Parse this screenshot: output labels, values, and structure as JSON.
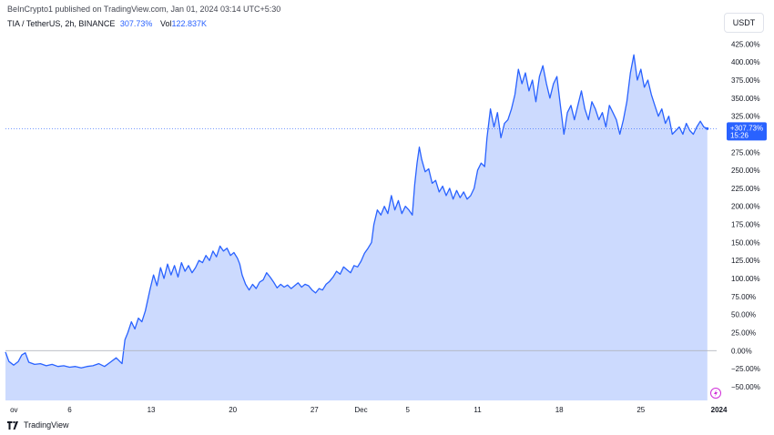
{
  "header": {
    "publisher": "BeInCrypto1 published on TradingView.com, Jan 01, 2024 03:14 UTC+5:30",
    "symbol": "TIA / TetherUS, 2h, BINANCE",
    "change": "307.73%",
    "volume_label": "Vol",
    "volume_value": "122.837K"
  },
  "currency": "USDT",
  "footer": {
    "brand": "TradingView"
  },
  "price_tag": {
    "value": "+307.73%",
    "countdown": "15:26"
  },
  "colors": {
    "line": "#2962ff",
    "fill": "#ccdafe",
    "zero_line": "#b2b5be",
    "tag": "#2962ff"
  },
  "icons": {
    "logo": "tradingview-logo-icon",
    "lightning": "lightning-icon"
  },
  "chart_data": {
    "type": "area",
    "ylabel_unit": "%",
    "ylim": [
      -69,
      428
    ],
    "xlim": [
      0,
      61
    ],
    "y_ticks": [
      "425.00%",
      "400.00%",
      "375.00%",
      "350.00%",
      "325.00%",
      "300.00%",
      "275.00%",
      "250.00%",
      "225.00%",
      "200.00%",
      "175.00%",
      "150.00%",
      "125.00%",
      "100.00%",
      "75.00%",
      "50.00%",
      "25.00%",
      "0.00%",
      "−25.00%",
      "−50.00%"
    ],
    "y_tick_values": [
      425,
      400,
      375,
      350,
      325,
      300,
      275,
      250,
      225,
      200,
      175,
      150,
      125,
      100,
      75,
      50,
      25,
      0,
      -25,
      -50
    ],
    "x_ticks": [
      {
        "label": "ov",
        "day": 0.4,
        "bold": false
      },
      {
        "label": "6",
        "day": 5.5,
        "bold": false
      },
      {
        "label": "13",
        "day": 12.5,
        "bold": false
      },
      {
        "label": "20",
        "day": 19.5,
        "bold": false
      },
      {
        "label": "27",
        "day": 26.5,
        "bold": false
      },
      {
        "label": "Dec",
        "day": 30.5,
        "bold": false
      },
      {
        "label": "5",
        "day": 34.5,
        "bold": false
      },
      {
        "label": "11",
        "day": 40.5,
        "bold": false
      },
      {
        "label": "18",
        "day": 47.5,
        "bold": false
      },
      {
        "label": "25",
        "day": 54.5,
        "bold": false
      },
      {
        "label": "2024",
        "day": 61.2,
        "bold": true
      }
    ],
    "last_value": 307.73,
    "series": [
      {
        "values": [
          [
            0,
            -2
          ],
          [
            0.3,
            -15
          ],
          [
            0.7,
            -20
          ],
          [
            1.1,
            -15
          ],
          [
            1.4,
            -6
          ],
          [
            1.7,
            -3
          ],
          [
            2.0,
            -16
          ],
          [
            2.5,
            -19
          ],
          [
            3.0,
            -18
          ],
          [
            3.5,
            -21
          ],
          [
            4.0,
            -19
          ],
          [
            4.5,
            -22
          ],
          [
            5.0,
            -21
          ],
          [
            5.5,
            -23
          ],
          [
            6.0,
            -22
          ],
          [
            6.5,
            -24
          ],
          [
            7.0,
            -22
          ],
          [
            7.5,
            -21
          ],
          [
            8.0,
            -18
          ],
          [
            8.5,
            -22
          ],
          [
            9.0,
            -16
          ],
          [
            9.5,
            -10
          ],
          [
            10.0,
            -18
          ],
          [
            10.25,
            15
          ],
          [
            10.5,
            25
          ],
          [
            10.8,
            40
          ],
          [
            11.1,
            30
          ],
          [
            11.4,
            45
          ],
          [
            11.7,
            40
          ],
          [
            12.0,
            55
          ],
          [
            12.2,
            70
          ],
          [
            12.4,
            85
          ],
          [
            12.7,
            105
          ],
          [
            13.0,
            90
          ],
          [
            13.3,
            115
          ],
          [
            13.6,
            100
          ],
          [
            13.9,
            120
          ],
          [
            14.2,
            105
          ],
          [
            14.5,
            118
          ],
          [
            14.8,
            102
          ],
          [
            15.1,
            122
          ],
          [
            15.4,
            110
          ],
          [
            15.7,
            118
          ],
          [
            16.0,
            108
          ],
          [
            16.3,
            115
          ],
          [
            16.6,
            125
          ],
          [
            16.9,
            122
          ],
          [
            17.2,
            132
          ],
          [
            17.5,
            125
          ],
          [
            17.8,
            138
          ],
          [
            18.1,
            130
          ],
          [
            18.4,
            145
          ],
          [
            18.7,
            138
          ],
          [
            19.0,
            142
          ],
          [
            19.3,
            132
          ],
          [
            19.6,
            136
          ],
          [
            19.9,
            128
          ],
          [
            20.1,
            120
          ],
          [
            20.3,
            105
          ],
          [
            20.6,
            92
          ],
          [
            20.9,
            84
          ],
          [
            21.2,
            92
          ],
          [
            21.5,
            86
          ],
          [
            21.8,
            95
          ],
          [
            22.1,
            98
          ],
          [
            22.4,
            108
          ],
          [
            22.7,
            102
          ],
          [
            23.0,
            95
          ],
          [
            23.3,
            87
          ],
          [
            23.6,
            92
          ],
          [
            23.9,
            88
          ],
          [
            24.2,
            91
          ],
          [
            24.5,
            86
          ],
          [
            24.8,
            90
          ],
          [
            25.1,
            94
          ],
          [
            25.4,
            88
          ],
          [
            25.7,
            92
          ],
          [
            26.0,
            90
          ],
          [
            26.3,
            84
          ],
          [
            26.6,
            80
          ],
          [
            26.9,
            86
          ],
          [
            27.2,
            84
          ],
          [
            27.5,
            92
          ],
          [
            27.8,
            96
          ],
          [
            28.1,
            102
          ],
          [
            28.4,
            110
          ],
          [
            28.7,
            106
          ],
          [
            29.0,
            116
          ],
          [
            29.3,
            112
          ],
          [
            29.6,
            108
          ],
          [
            29.9,
            118
          ],
          [
            30.2,
            116
          ],
          [
            30.5,
            124
          ],
          [
            30.8,
            135
          ],
          [
            31.1,
            142
          ],
          [
            31.4,
            150
          ],
          [
            31.6,
            175
          ],
          [
            31.9,
            195
          ],
          [
            32.2,
            188
          ],
          [
            32.5,
            200
          ],
          [
            32.8,
            190
          ],
          [
            33.1,
            215
          ],
          [
            33.4,
            195
          ],
          [
            33.7,
            208
          ],
          [
            34.0,
            190
          ],
          [
            34.3,
            200
          ],
          [
            34.6,
            195
          ],
          [
            34.9,
            188
          ],
          [
            35.1,
            230
          ],
          [
            35.3,
            260
          ],
          [
            35.5,
            282
          ],
          [
            35.7,
            265
          ],
          [
            36.0,
            248
          ],
          [
            36.3,
            252
          ],
          [
            36.6,
            232
          ],
          [
            36.9,
            236
          ],
          [
            37.2,
            220
          ],
          [
            37.5,
            228
          ],
          [
            37.8,
            215
          ],
          [
            38.1,
            225
          ],
          [
            38.4,
            210
          ],
          [
            38.7,
            222
          ],
          [
            39.0,
            212
          ],
          [
            39.3,
            220
          ],
          [
            39.6,
            210
          ],
          [
            39.9,
            215
          ],
          [
            40.2,
            225
          ],
          [
            40.5,
            250
          ],
          [
            40.8,
            260
          ],
          [
            41.1,
            255
          ],
          [
            41.3,
            295
          ],
          [
            41.6,
            335
          ],
          [
            41.9,
            310
          ],
          [
            42.2,
            330
          ],
          [
            42.5,
            295
          ],
          [
            42.8,
            315
          ],
          [
            43.1,
            320
          ],
          [
            43.4,
            335
          ],
          [
            43.7,
            355
          ],
          [
            44.0,
            390
          ],
          [
            44.3,
            370
          ],
          [
            44.6,
            385
          ],
          [
            44.9,
            360
          ],
          [
            45.2,
            375
          ],
          [
            45.5,
            345
          ],
          [
            45.8,
            380
          ],
          [
            46.1,
            395
          ],
          [
            46.4,
            370
          ],
          [
            46.7,
            350
          ],
          [
            47.0,
            370
          ],
          [
            47.3,
            380
          ],
          [
            47.6,
            340
          ],
          [
            47.9,
            300
          ],
          [
            48.2,
            330
          ],
          [
            48.5,
            340
          ],
          [
            48.8,
            320
          ],
          [
            49.1,
            340
          ],
          [
            49.4,
            360
          ],
          [
            49.7,
            335
          ],
          [
            50.0,
            320
          ],
          [
            50.3,
            345
          ],
          [
            50.6,
            335
          ],
          [
            50.9,
            320
          ],
          [
            51.2,
            330
          ],
          [
            51.5,
            310
          ],
          [
            51.8,
            340
          ],
          [
            52.1,
            330
          ],
          [
            52.4,
            320
          ],
          [
            52.7,
            300
          ],
          [
            53.0,
            320
          ],
          [
            53.3,
            345
          ],
          [
            53.6,
            385
          ],
          [
            53.9,
            410
          ],
          [
            54.2,
            375
          ],
          [
            54.5,
            390
          ],
          [
            54.8,
            365
          ],
          [
            55.1,
            375
          ],
          [
            55.4,
            355
          ],
          [
            55.7,
            340
          ],
          [
            56.0,
            325
          ],
          [
            56.3,
            335
          ],
          [
            56.6,
            315
          ],
          [
            56.9,
            325
          ],
          [
            57.2,
            300
          ],
          [
            57.5,
            305
          ],
          [
            57.8,
            310
          ],
          [
            58.1,
            300
          ],
          [
            58.4,
            315
          ],
          [
            58.7,
            305
          ],
          [
            59.0,
            300
          ],
          [
            59.3,
            310
          ],
          [
            59.6,
            318
          ],
          [
            59.9,
            310
          ],
          [
            60.2,
            307.73
          ]
        ]
      }
    ]
  }
}
